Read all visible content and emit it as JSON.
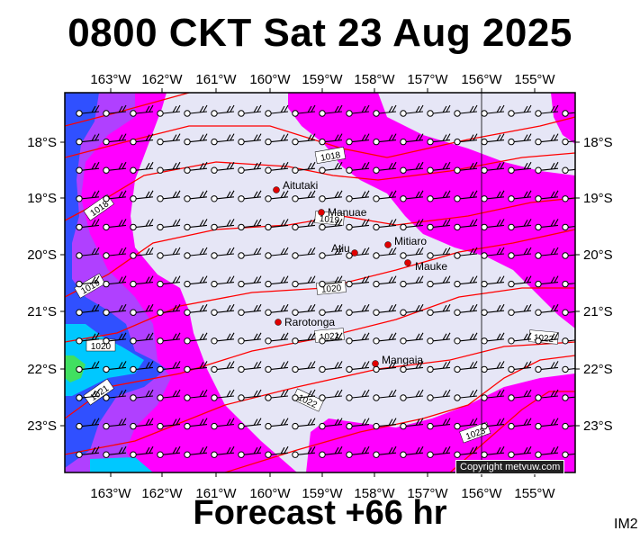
{
  "title": "0800 CKT Sat 23 Aug 2025",
  "footer": "Forecast +66 hr",
  "product_code": "IM2",
  "copyright": "Copyright metvuw.com",
  "longitude_labels": [
    "163°W",
    "162°W",
    "161°W",
    "160°W",
    "159°W",
    "158°W",
    "157°W",
    "156°W",
    "155°W"
  ],
  "latitude_labels": [
    "18°S",
    "19°S",
    "20°S",
    "21°S",
    "22°S",
    "23°S"
  ],
  "places": [
    {
      "name": "Aitutaki"
    },
    {
      "name": "Manuae"
    },
    {
      "name": "Mitiaro"
    },
    {
      "name": "Atiu"
    },
    {
      "name": "Mauke"
    },
    {
      "name": "Rarotonga"
    },
    {
      "name": "Mangaia"
    }
  ],
  "isobars": [
    "1018",
    "1018",
    "1019",
    "1019",
    "1020",
    "1020",
    "1021",
    "1021",
    "1022",
    "1022",
    "1023"
  ],
  "colors": {
    "land_bg": "#e6e6f6",
    "magenta": "#ff00ff",
    "purple": "#b040ff",
    "blue": "#3050ff",
    "cyan": "#00c8ff",
    "green": "#40e060",
    "isobar": "#ff0000",
    "place_dot": "#e00000"
  },
  "wind_barb_icon": "wind-barb-icon"
}
